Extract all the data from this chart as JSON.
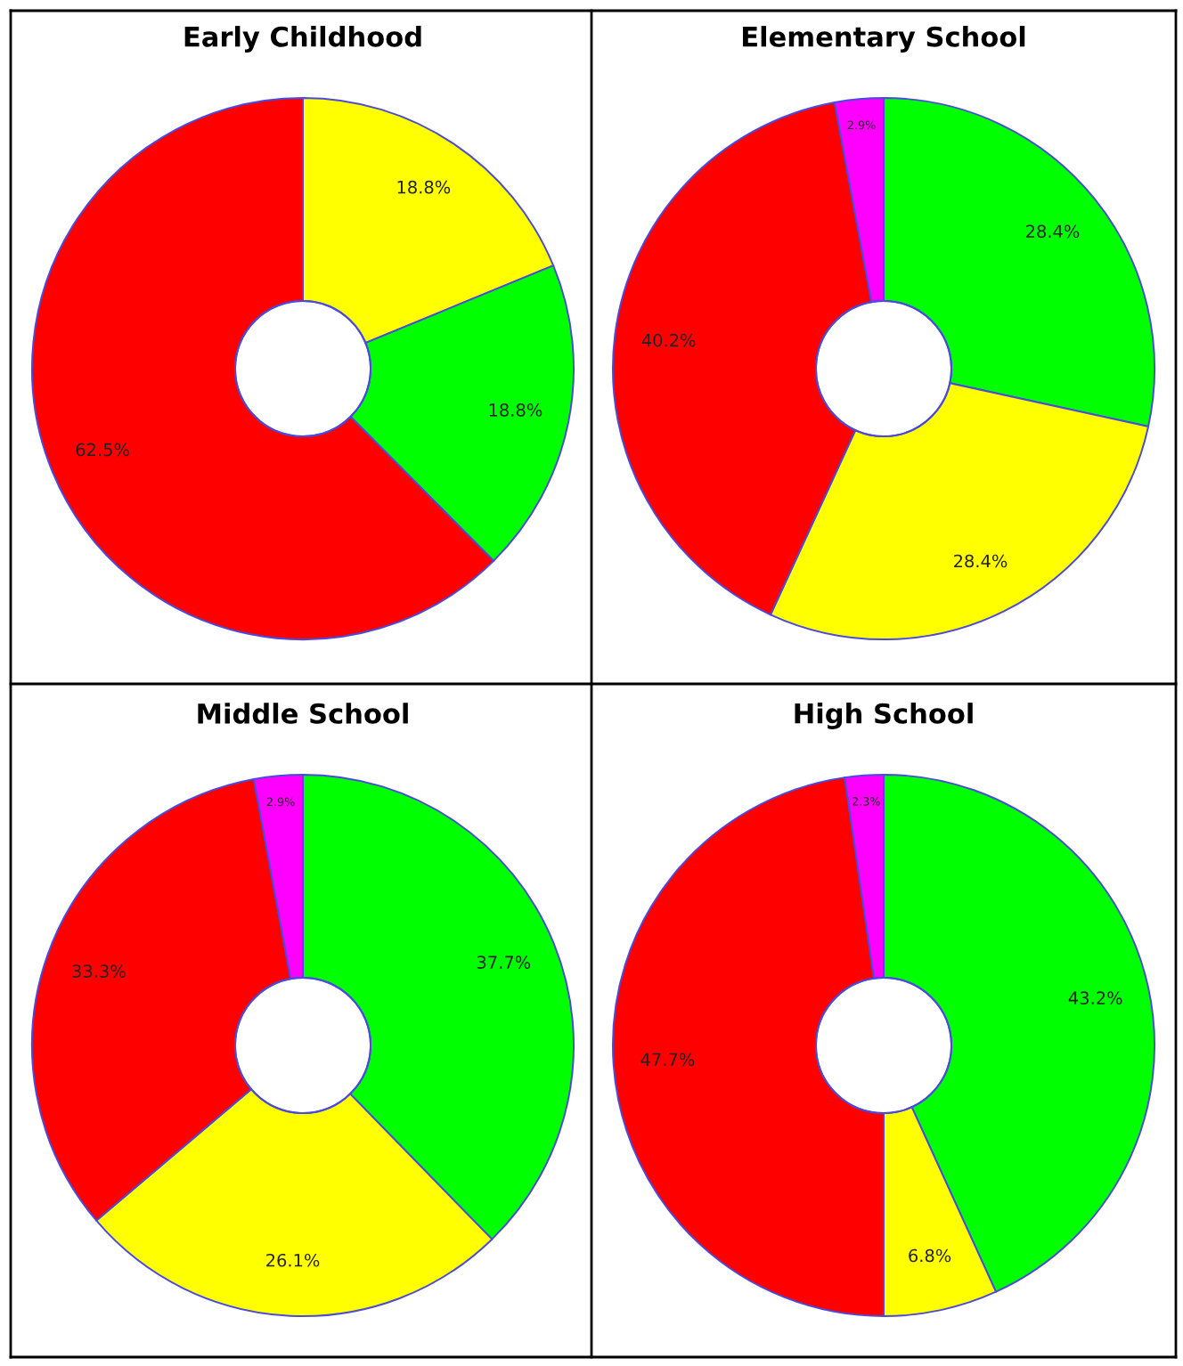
{
  "chart_data": [
    {
      "type": "donut",
      "title": "Early Childhood",
      "categories": [
        null,
        null,
        null
      ],
      "values": [
        18.8,
        18.8,
        62.5
      ],
      "colors": [
        "#ffff00",
        "#00ff00",
        "#ff0000"
      ],
      "value_labels": [
        "18.8%",
        "18.8%",
        "62.5%"
      ]
    },
    {
      "type": "donut",
      "title": "Elementary School",
      "categories": [
        null,
        null,
        null,
        null
      ],
      "values": [
        28.4,
        28.4,
        40.2,
        2.9
      ],
      "colors": [
        "#00ff00",
        "#ffff00",
        "#ff0000",
        "#ff00ff"
      ],
      "value_labels": [
        "28.4%",
        "28.4%",
        "40.2%",
        "2.9%"
      ]
    },
    {
      "type": "donut",
      "title": "Middle School",
      "categories": [
        null,
        null,
        null,
        null
      ],
      "values": [
        37.7,
        26.1,
        33.3,
        2.9
      ],
      "colors": [
        "#00ff00",
        "#ffff00",
        "#ff0000",
        "#ff00ff"
      ],
      "value_labels": [
        "37.7%",
        "26.1%",
        "33.3%",
        "2.9%"
      ]
    },
    {
      "type": "donut",
      "title": "High School",
      "categories": [
        null,
        null,
        null,
        null
      ],
      "values": [
        43.2,
        6.8,
        47.7,
        2.3
      ],
      "colors": [
        "#00ff00",
        "#ffff00",
        "#ff0000",
        "#ff00ff"
      ],
      "value_labels": [
        "43.2%",
        "6.8%",
        "47.7%",
        "2.3%"
      ]
    }
  ]
}
